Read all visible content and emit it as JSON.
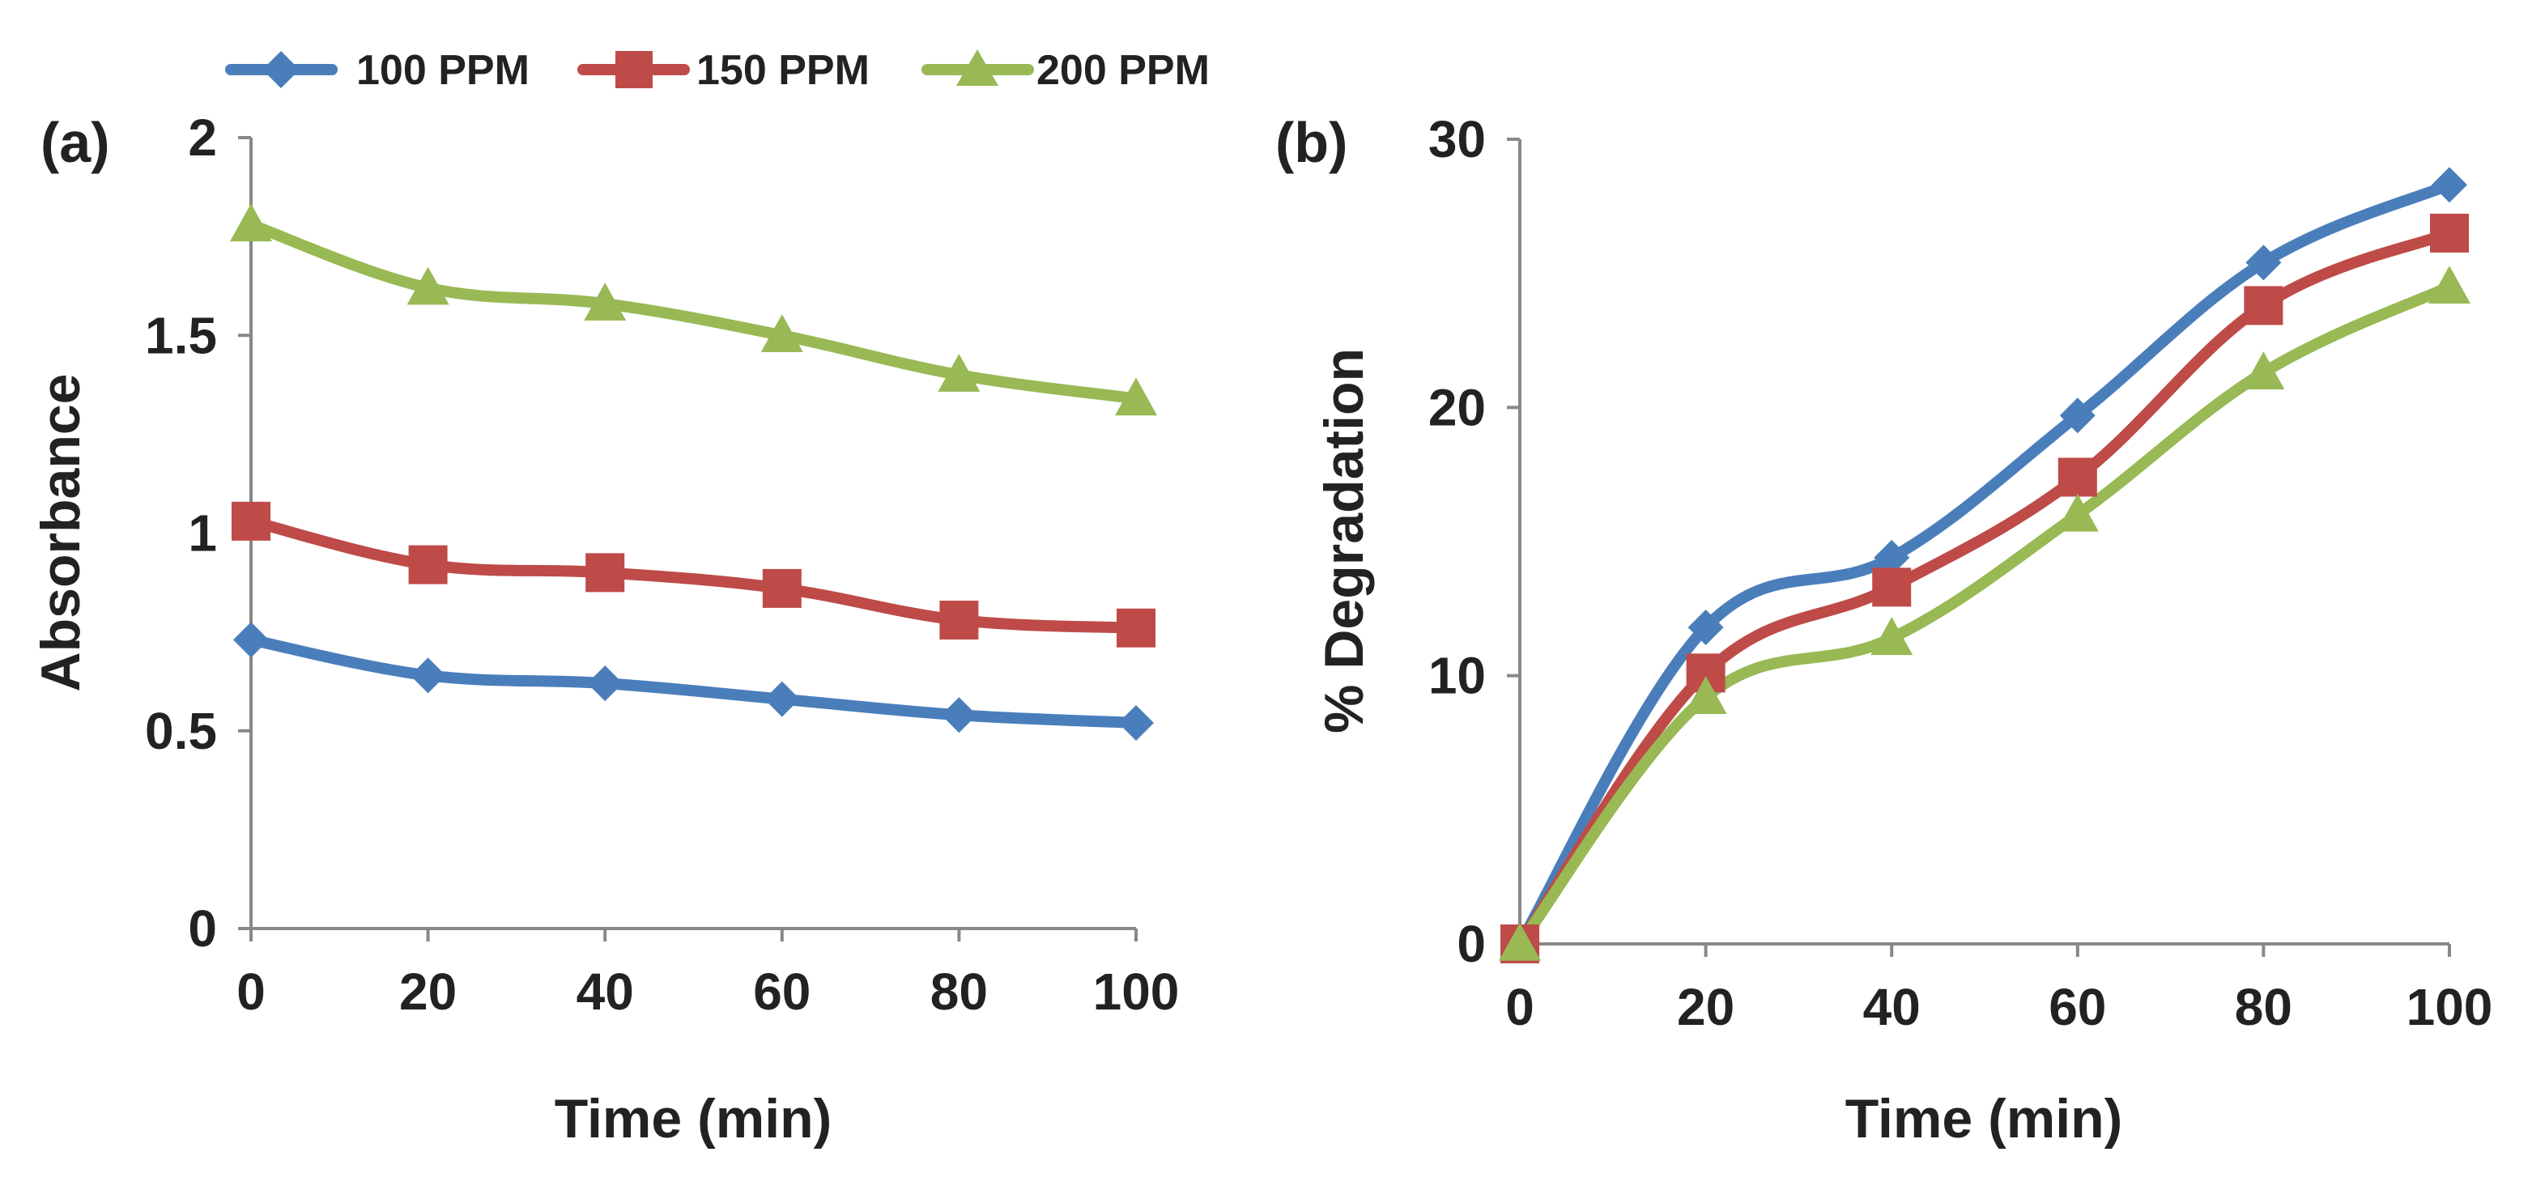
{
  "legend": [
    {
      "label": "100 PPM",
      "color": "#4a7ebb",
      "marker": "diamond"
    },
    {
      "label": "150 PPM",
      "color": "#be4b48",
      "marker": "square"
    },
    {
      "label": "200 PPM",
      "color": "#98b954",
      "marker": "triangle"
    }
  ],
  "chart_data": [
    {
      "type": "line",
      "panel_label": "(a)",
      "xlabel": "Time (min)",
      "ylabel": "Absorbance",
      "x": [
        0,
        20,
        40,
        60,
        80,
        100
      ],
      "xlim": [
        0,
        100
      ],
      "ylim": [
        0,
        2
      ],
      "xticks": [
        "0",
        "20",
        "40",
        "60",
        "80",
        "100"
      ],
      "yticks": [
        "0",
        "0.5",
        "1",
        "1.5",
        "2"
      ],
      "ytick_values": [
        0,
        0.5,
        1,
        1.5,
        2
      ],
      "grid": false,
      "series": [
        {
          "name": "100 PPM",
          "values": [
            0.73,
            0.64,
            0.62,
            0.58,
            0.54,
            0.52
          ]
        },
        {
          "name": "150 PPM",
          "values": [
            1.03,
            0.92,
            0.9,
            0.86,
            0.78,
            0.76
          ]
        },
        {
          "name": "200 PPM",
          "values": [
            1.78,
            1.62,
            1.58,
            1.5,
            1.4,
            1.34
          ]
        }
      ]
    },
    {
      "type": "line",
      "panel_label": "(b)",
      "xlabel": "Time (min)",
      "ylabel": "% Degradation",
      "x": [
        0,
        20,
        40,
        60,
        80,
        100
      ],
      "xlim": [
        0,
        100
      ],
      "ylim": [
        0,
        30
      ],
      "xticks": [
        "0",
        "20",
        "40",
        "60",
        "80",
        "100"
      ],
      "yticks": [
        "0",
        "10",
        "20",
        "30"
      ],
      "ytick_values": [
        0,
        10,
        20,
        30
      ],
      "grid": false,
      "series": [
        {
          "name": "100 PPM",
          "values": [
            0,
            11.8,
            14.4,
            19.7,
            25.4,
            28.3
          ]
        },
        {
          "name": "150 PPM",
          "values": [
            0,
            10.1,
            13.3,
            17.4,
            23.8,
            26.5
          ]
        },
        {
          "name": "200 PPM",
          "values": [
            0,
            9.2,
            11.4,
            16.0,
            21.3,
            24.5
          ]
        }
      ]
    }
  ]
}
